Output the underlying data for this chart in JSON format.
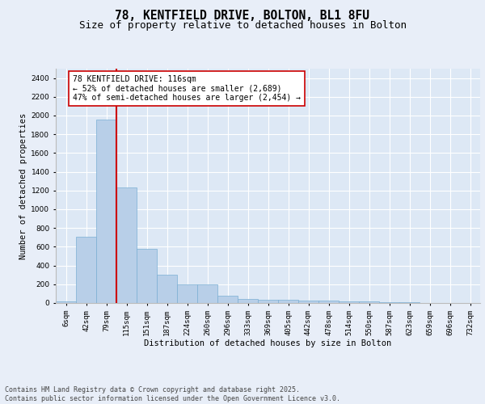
{
  "title_line1": "78, KENTFIELD DRIVE, BOLTON, BL1 8FU",
  "title_line2": "Size of property relative to detached houses in Bolton",
  "xlabel": "Distribution of detached houses by size in Bolton",
  "ylabel": "Number of detached properties",
  "bar_labels": [
    "6sqm",
    "42sqm",
    "79sqm",
    "115sqm",
    "151sqm",
    "187sqm",
    "224sqm",
    "260sqm",
    "296sqm",
    "333sqm",
    "369sqm",
    "405sqm",
    "442sqm",
    "478sqm",
    "514sqm",
    "550sqm",
    "587sqm",
    "623sqm",
    "659sqm",
    "696sqm",
    "732sqm"
  ],
  "bar_values": [
    15,
    710,
    1960,
    1235,
    575,
    305,
    200,
    200,
    80,
    45,
    35,
    35,
    30,
    30,
    15,
    15,
    5,
    5,
    0,
    0,
    0
  ],
  "bar_color": "#b8cfe8",
  "bar_edge_color": "#7aafd4",
  "bg_color": "#dde8f5",
  "fig_bg_color": "#e8eef8",
  "grid_color": "#ffffff",
  "vline_color": "#cc0000",
  "annotation_text": "78 KENTFIELD DRIVE: 116sqm\n← 52% of detached houses are smaller (2,689)\n47% of semi-detached houses are larger (2,454) →",
  "annotation_box_facecolor": "#ffffff",
  "annotation_box_edgecolor": "#cc0000",
  "ylim": [
    0,
    2500
  ],
  "yticks": [
    0,
    200,
    400,
    600,
    800,
    1000,
    1200,
    1400,
    1600,
    1800,
    2000,
    2200,
    2400
  ],
  "footer_line1": "Contains HM Land Registry data © Crown copyright and database right 2025.",
  "footer_line2": "Contains public sector information licensed under the Open Government Licence v3.0.",
  "title_fontsize": 10.5,
  "subtitle_fontsize": 9,
  "axis_label_fontsize": 7.5,
  "tick_fontsize": 6.5,
  "annotation_fontsize": 7,
  "footer_fontsize": 6
}
